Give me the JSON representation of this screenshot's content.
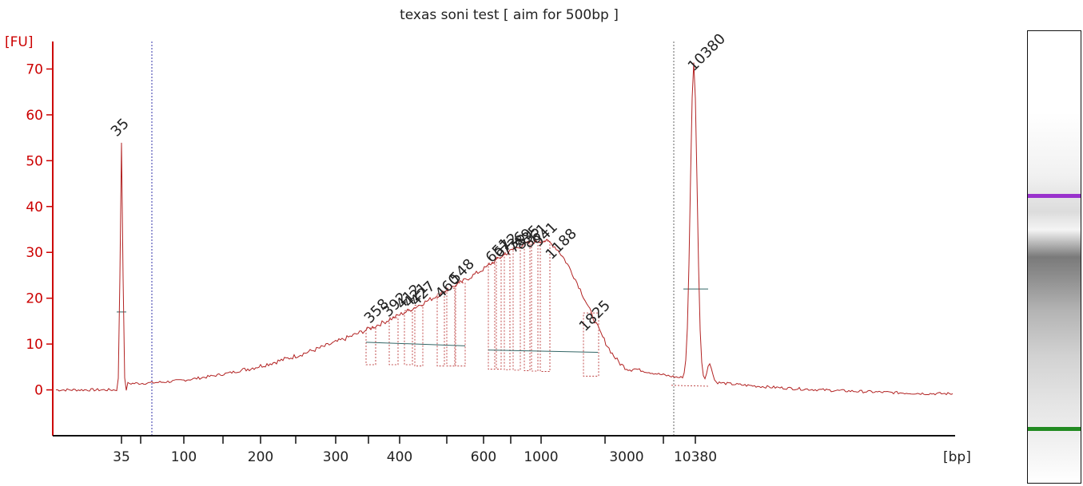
{
  "chart_data": {
    "type": "line",
    "title": "texas soni test  [ aim for 500bp ]",
    "ylabel": "[FU]",
    "xlabel": "[bp]",
    "ylim": [
      -10,
      76
    ],
    "y_ticks": [
      0,
      10,
      20,
      30,
      40,
      50,
      60,
      70
    ],
    "x_tick_labels": [
      "35",
      "100",
      "200",
      "300",
      "400",
      "600",
      "1000",
      "3000",
      "10380"
    ],
    "lower_marker": {
      "label": "35",
      "height": 54,
      "color": "#228b22"
    },
    "upper_marker": {
      "label": "10380",
      "height": 69,
      "color": "#9932cc"
    },
    "peak_labels": [
      "358",
      "392",
      "412",
      "421",
      "427",
      "460",
      "548",
      "651",
      "672",
      "736",
      "789",
      "835",
      "861",
      "941",
      "1188",
      "1825"
    ],
    "smear_baseline_fu": 0,
    "colors": {
      "trace": "#b22222",
      "axis": "#cc0000",
      "lower_marker": "#228b22",
      "upper_marker": "#9932cc"
    }
  },
  "gel": {
    "upper_band_color": "#9932cc",
    "lower_band_color": "#228b22"
  }
}
